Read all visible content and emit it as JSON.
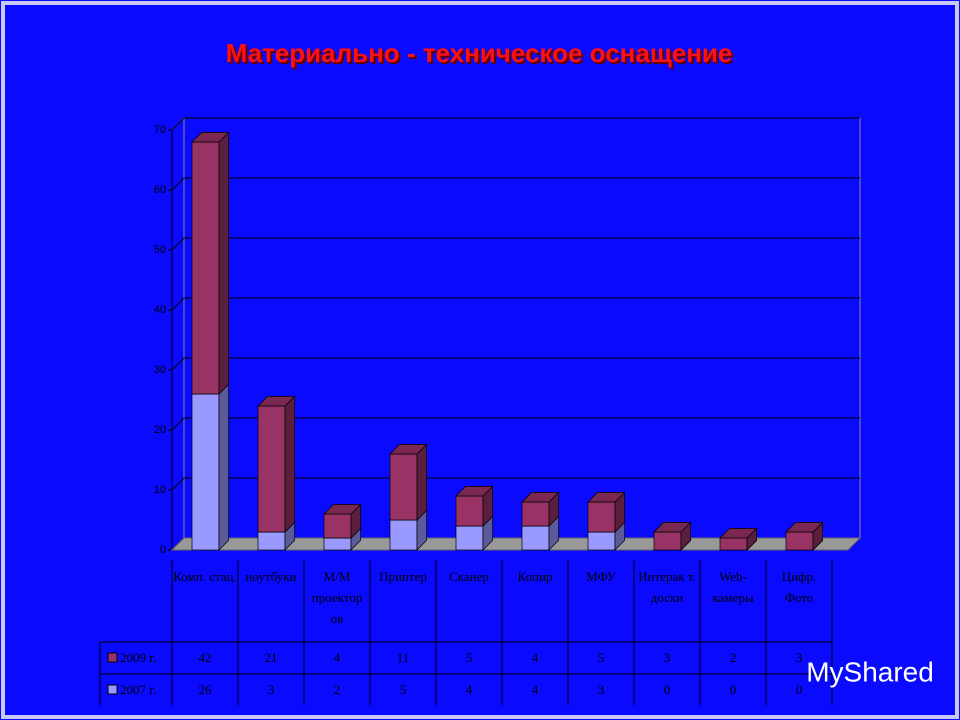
{
  "chart_data": {
    "type": "bar3d_stacked",
    "title": "Материально - техническое оснащение",
    "categories": [
      "Комп. стац.",
      "ноутбуки",
      "М/М проектор ов",
      "Принтер",
      "Сканер",
      "Копир",
      "МФУ",
      "Интерак т. доски",
      "Web- камеры",
      "Цифр. Фото"
    ],
    "series": [
      {
        "name": "2007 г.",
        "color": "#9999ff",
        "values": [
          26,
          3,
          2,
          5,
          4,
          4,
          3,
          0,
          0,
          0
        ]
      },
      {
        "name": "2009 г.",
        "color": "#993366",
        "values": [
          42,
          21,
          4,
          11,
          5,
          4,
          5,
          3,
          2,
          3
        ]
      }
    ],
    "ylim": [
      0,
      70
    ],
    "yticks": [
      0,
      10,
      20,
      30,
      40,
      50,
      60,
      70
    ],
    "grid": true,
    "watermark": "MyShared"
  }
}
